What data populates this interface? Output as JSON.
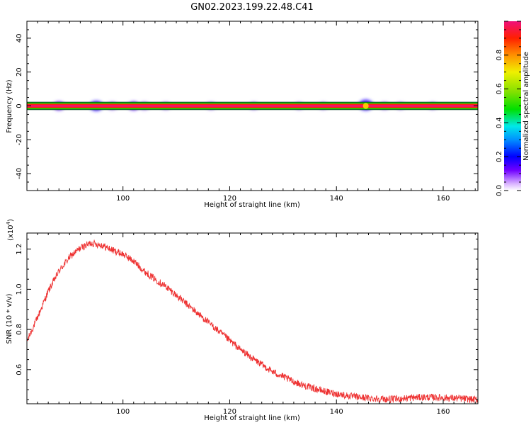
{
  "title": "GN02.2023.199.22.48.C41",
  "chart_data": [
    {
      "type": "heatmap",
      "xlabel": "Height of straight line (km)",
      "ylabel": "Frequency (Hz)",
      "xlim": [
        82,
        166.5
      ],
      "ylim": [
        -50,
        50
      ],
      "x_ticks": [
        100,
        120,
        140,
        160
      ],
      "y_ticks": [
        -40,
        -20,
        0,
        20,
        40
      ],
      "band_frequency_hz": 0,
      "band_width_hz": 4,
      "blobs": [
        {
          "x": 88,
          "y": 0,
          "amplitude": 0.2
        },
        {
          "x": 95,
          "y": 0,
          "amplitude": 0.3
        },
        {
          "x": 98,
          "y": 0,
          "amplitude": 0.15
        },
        {
          "x": 102,
          "y": 0,
          "amplitude": 0.2
        },
        {
          "x": 104,
          "y": 0,
          "amplitude": 0.15
        },
        {
          "x": 108,
          "y": 0,
          "amplitude": 0.12
        },
        {
          "x": 116.5,
          "y": 0,
          "amplitude": 0.12
        },
        {
          "x": 124.5,
          "y": 0,
          "amplitude": 0.12
        },
        {
          "x": 133,
          "y": 0,
          "amplitude": 0.1
        },
        {
          "x": 137.5,
          "y": 0,
          "amplitude": 0.1
        },
        {
          "x": 145.5,
          "y": 0.5,
          "amplitude": 0.35
        },
        {
          "x": 149,
          "y": 0,
          "amplitude": 0.12
        },
        {
          "x": 152,
          "y": 0,
          "amplitude": 0.1
        },
        {
          "x": 158,
          "y": 0,
          "amplitude": 0.1
        }
      ],
      "colorbar": {
        "label": "Normalized spectral amplitude",
        "ticks": [
          "0.0",
          "0.2",
          "0.4",
          "0.6",
          "0.8"
        ],
        "range": [
          0,
          1
        ]
      }
    },
    {
      "type": "line",
      "xlabel": "Height of straight line (km)",
      "ylabel": "SNR (10 * v/v)",
      "y_exponent_label": "(x10",
      "y_exponent_power": "4",
      "y_exponent_close": ")",
      "xlim": [
        82,
        166.5
      ],
      "ylim": [
        0.43,
        1.28
      ],
      "x_ticks": [
        100,
        120,
        140,
        160
      ],
      "y_ticks": [
        "0.6",
        "0.8",
        "1.0",
        "1.2"
      ],
      "series": [
        {
          "color": "#ee3333",
          "x": [
            82,
            84,
            86,
            88,
            90,
            92,
            94,
            96,
            98,
            100,
            102,
            104,
            106,
            108,
            110,
            112,
            114,
            116,
            118,
            120,
            122,
            124,
            126,
            128,
            130,
            132,
            134,
            136,
            138,
            140,
            142,
            144,
            146,
            148,
            150,
            152,
            154,
            156,
            158,
            160,
            162,
            164,
            166
          ],
          "y": [
            0.74,
            0.86,
            0.99,
            1.09,
            1.16,
            1.205,
            1.23,
            1.22,
            1.195,
            1.175,
            1.14,
            1.09,
            1.05,
            1.015,
            0.97,
            0.925,
            0.88,
            0.835,
            0.79,
            0.745,
            0.7,
            0.66,
            0.625,
            0.59,
            0.565,
            0.54,
            0.52,
            0.505,
            0.49,
            0.48,
            0.47,
            0.463,
            0.458,
            0.455,
            0.452,
            0.455,
            0.46,
            0.462,
            0.462,
            0.46,
            0.458,
            0.455,
            0.45
          ]
        }
      ]
    }
  ]
}
